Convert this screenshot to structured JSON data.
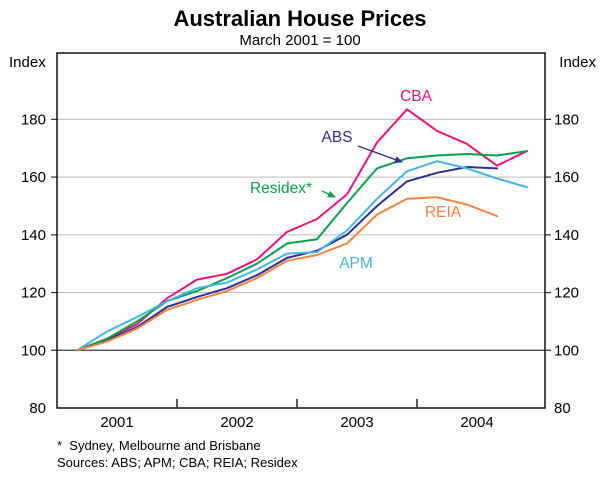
{
  "title": "Australian House Prices",
  "subtitle": "March 2001 = 100",
  "y_axis": {
    "unit_left": "Index",
    "unit_right": "Index"
  },
  "footnote": "*  Sydney, Melbourne and Brisbane",
  "sources": "Sources: ABS; APM; CBA; REIA; Residex",
  "chart_data": {
    "type": "line",
    "title": "Australian House Prices",
    "subtitle": "March 2001 = 100",
    "ylabel": "Index",
    "ylim": [
      80,
      203
    ],
    "yticks": [
      80,
      100,
      120,
      140,
      160,
      180
    ],
    "baseline_value": 100,
    "grid": true,
    "legend_position": "inline-labels",
    "x_years": [
      "2001",
      "2002",
      "2003",
      "2004"
    ],
    "categories": [
      "Mar 2001",
      "Jun 2001",
      "Sep 2001",
      "Dec 2001",
      "Mar 2002",
      "Jun 2002",
      "Sep 2002",
      "Dec 2002",
      "Mar 2003",
      "Jun 2003",
      "Sep 2003",
      "Dec 2003",
      "Mar 2004",
      "Jun 2004",
      "Sep 2004",
      "Dec 2004"
    ],
    "series": [
      {
        "name": "CBA",
        "color": "#EC127C",
        "values": [
          100,
          104,
          109,
          118,
          124.5,
          126.5,
          131.5,
          141,
          145.5,
          154,
          172,
          183.5,
          176,
          171.5,
          164,
          169
        ]
      },
      {
        "name": "ABS",
        "color": "#2D3192",
        "values": [
          100,
          103.5,
          108,
          115,
          118.5,
          121.5,
          126,
          132,
          134.5,
          140,
          150,
          158.5,
          161.5,
          163.5,
          163,
          null
        ]
      },
      {
        "name": "Residex*",
        "color": "#0AA14E",
        "values": [
          100,
          104,
          110,
          117,
          120.5,
          125,
          130,
          137,
          138.5,
          151,
          163,
          166.5,
          167.5,
          168,
          167.5,
          169
        ]
      },
      {
        "name": "APM",
        "color": "#46B4E7",
        "values": [
          100,
          106.5,
          111.5,
          117,
          121.5,
          123.5,
          128,
          133.5,
          134,
          141.5,
          152.5,
          162,
          165.5,
          163,
          159.5,
          156.5
        ]
      },
      {
        "name": "REIA",
        "color": "#F48240",
        "values": [
          100,
          103,
          107.5,
          114,
          117.5,
          120.5,
          125,
          131,
          133,
          137,
          147,
          152.5,
          153,
          150.5,
          146.5,
          null
        ]
      }
    ],
    "colors": {
      "gridline": "#BBBBBB",
      "baseline": "#3A3A3A",
      "frame": "#000000"
    }
  }
}
